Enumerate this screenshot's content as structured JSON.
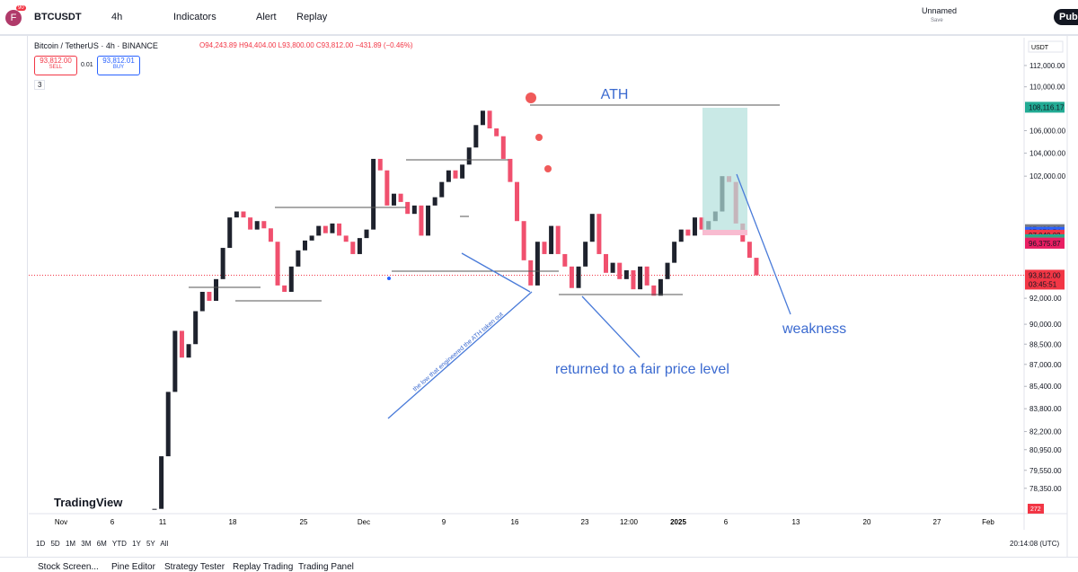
{
  "toolbar": {
    "avatar": "F",
    "badge": "90",
    "symbol": "BTCUSDT",
    "interval": "4h",
    "indicators": "Indicators",
    "alert": "Alert",
    "replay": "Replay",
    "layout_name": "Unnamed",
    "layout_status": "Save",
    "publish": "Publish"
  },
  "legend": {
    "title": "Bitcoin / TetherUS · 4h · BINANCE",
    "ohlc": "O94,243.89 H94,404.00 L93,800.00 C93,812.00 −431.89 (−0.46%)",
    "sell_price": "93,812.00",
    "sell": "SELL",
    "spread": "0.01",
    "buy_price": "93,812.01",
    "buy": "BUY",
    "collapsed_count": "3"
  },
  "chart": {
    "type": "candlestick",
    "log_scale": true,
    "currency": "USDT",
    "ylim": [
      76690,
      114660
    ],
    "yticks": [
      {
        "value": 112000,
        "label": "112,000.00"
      },
      {
        "value": 110000,
        "label": "110,000.00"
      },
      {
        "value": 106000,
        "label": "106,000.00"
      },
      {
        "value": 104000,
        "label": "104,000.00"
      },
      {
        "value": 102000,
        "label": "102,000.00"
      },
      {
        "value": 92000,
        "label": "92,000.00"
      },
      {
        "value": 90000,
        "label": "90,000.00"
      },
      {
        "value": 88500,
        "label": "88,500.00"
      },
      {
        "value": 87000,
        "label": "87,000.00"
      },
      {
        "value": 85400,
        "label": "85,400.00"
      },
      {
        "value": 83800,
        "label": "83,800.00"
      },
      {
        "value": 82200,
        "label": "82,200.00"
      },
      {
        "value": 80950,
        "label": "80,950.00"
      },
      {
        "value": 79550,
        "label": "79,550.00"
      },
      {
        "value": 78350,
        "label": "78,350.00"
      }
    ],
    "price_labels": [
      {
        "value": 108116.17,
        "label": "108,116.17",
        "color": "#22ab94"
      },
      {
        "value": 97493.22,
        "label": "97,493.22",
        "color": "#787b86"
      },
      {
        "value": 97270.54,
        "label": "97,270.54",
        "color": "#2962ff"
      },
      {
        "value": 97040.02,
        "label": "97,040.02",
        "color": "#f23645"
      },
      {
        "value": 96669.65,
        "label": "96,669.65",
        "color": "#22ab94"
      },
      {
        "value": 96484.5,
        "label": "96,484.50",
        "color": "#4caf50"
      },
      {
        "value": 96452.32,
        "label": "96,452.32",
        "color": "#787b86"
      },
      {
        "value": 96375.87,
        "label": "96,375.87",
        "color": "#e91e63"
      }
    ],
    "last_price": {
      "value": 93812.0,
      "label": "93,812.00",
      "countdown": "03:45:51",
      "color": "#f23645"
    },
    "volume_label": "272",
    "closes": [
      77000,
      80500,
      85000,
      89500,
      87500,
      88500,
      91000,
      92500,
      91800,
      93500,
      96000,
      98500,
      99000,
      98500,
      97500,
      98200,
      97600,
      96500,
      93000,
      92500,
      94500,
      95800,
      96600,
      97000,
      97800,
      97200,
      98000,
      97000,
      96500,
      95500,
      96800,
      97500,
      103500,
      102500,
      99500,
      100500,
      99800,
      98800,
      99500,
      97000,
      99500,
      100200,
      101500,
      102500,
      101800,
      103000,
      104500,
      106500,
      107800,
      106200,
      105500,
      103500,
      101500,
      98200,
      95000,
      93000,
      96500,
      95500,
      97800,
      95500,
      94500,
      92800,
      94500,
      96500,
      98800,
      95500,
      94000,
      94800,
      93500,
      94200,
      92700,
      94500,
      93000,
      92200,
      93500,
      94800,
      96500,
      97500,
      97000,
      98500,
      97500,
      98200,
      99000,
      102000,
      101500,
      98000,
      96500,
      95200,
      93800
    ],
    "up_color": "#1e222d",
    "down_color": "#f0506e",
    "time_labels": [
      "Nov",
      "6",
      "11",
      "18",
      "25",
      "Dec",
      "9",
      "16",
      "23",
      "12:00",
      "2025",
      "6",
      "13",
      "20",
      "27",
      "Feb"
    ],
    "watermark": "TradingView"
  },
  "annotations": {
    "ath": "ATH",
    "low_note": "the low that engineered the ATH taken out",
    "fair_price": "returned to a fair price level",
    "weakness": "weakness"
  },
  "bottom": {
    "ranges": [
      "1D",
      "5D",
      "1M",
      "3M",
      "6M",
      "YTD",
      "1Y",
      "5Y",
      "All"
    ],
    "clock": "20:14:08 (UTC)",
    "tabs": [
      "Stock Screen...",
      "Pine Editor",
      "Strategy Tester",
      "Replay Trading",
      "Trading Panel"
    ]
  }
}
